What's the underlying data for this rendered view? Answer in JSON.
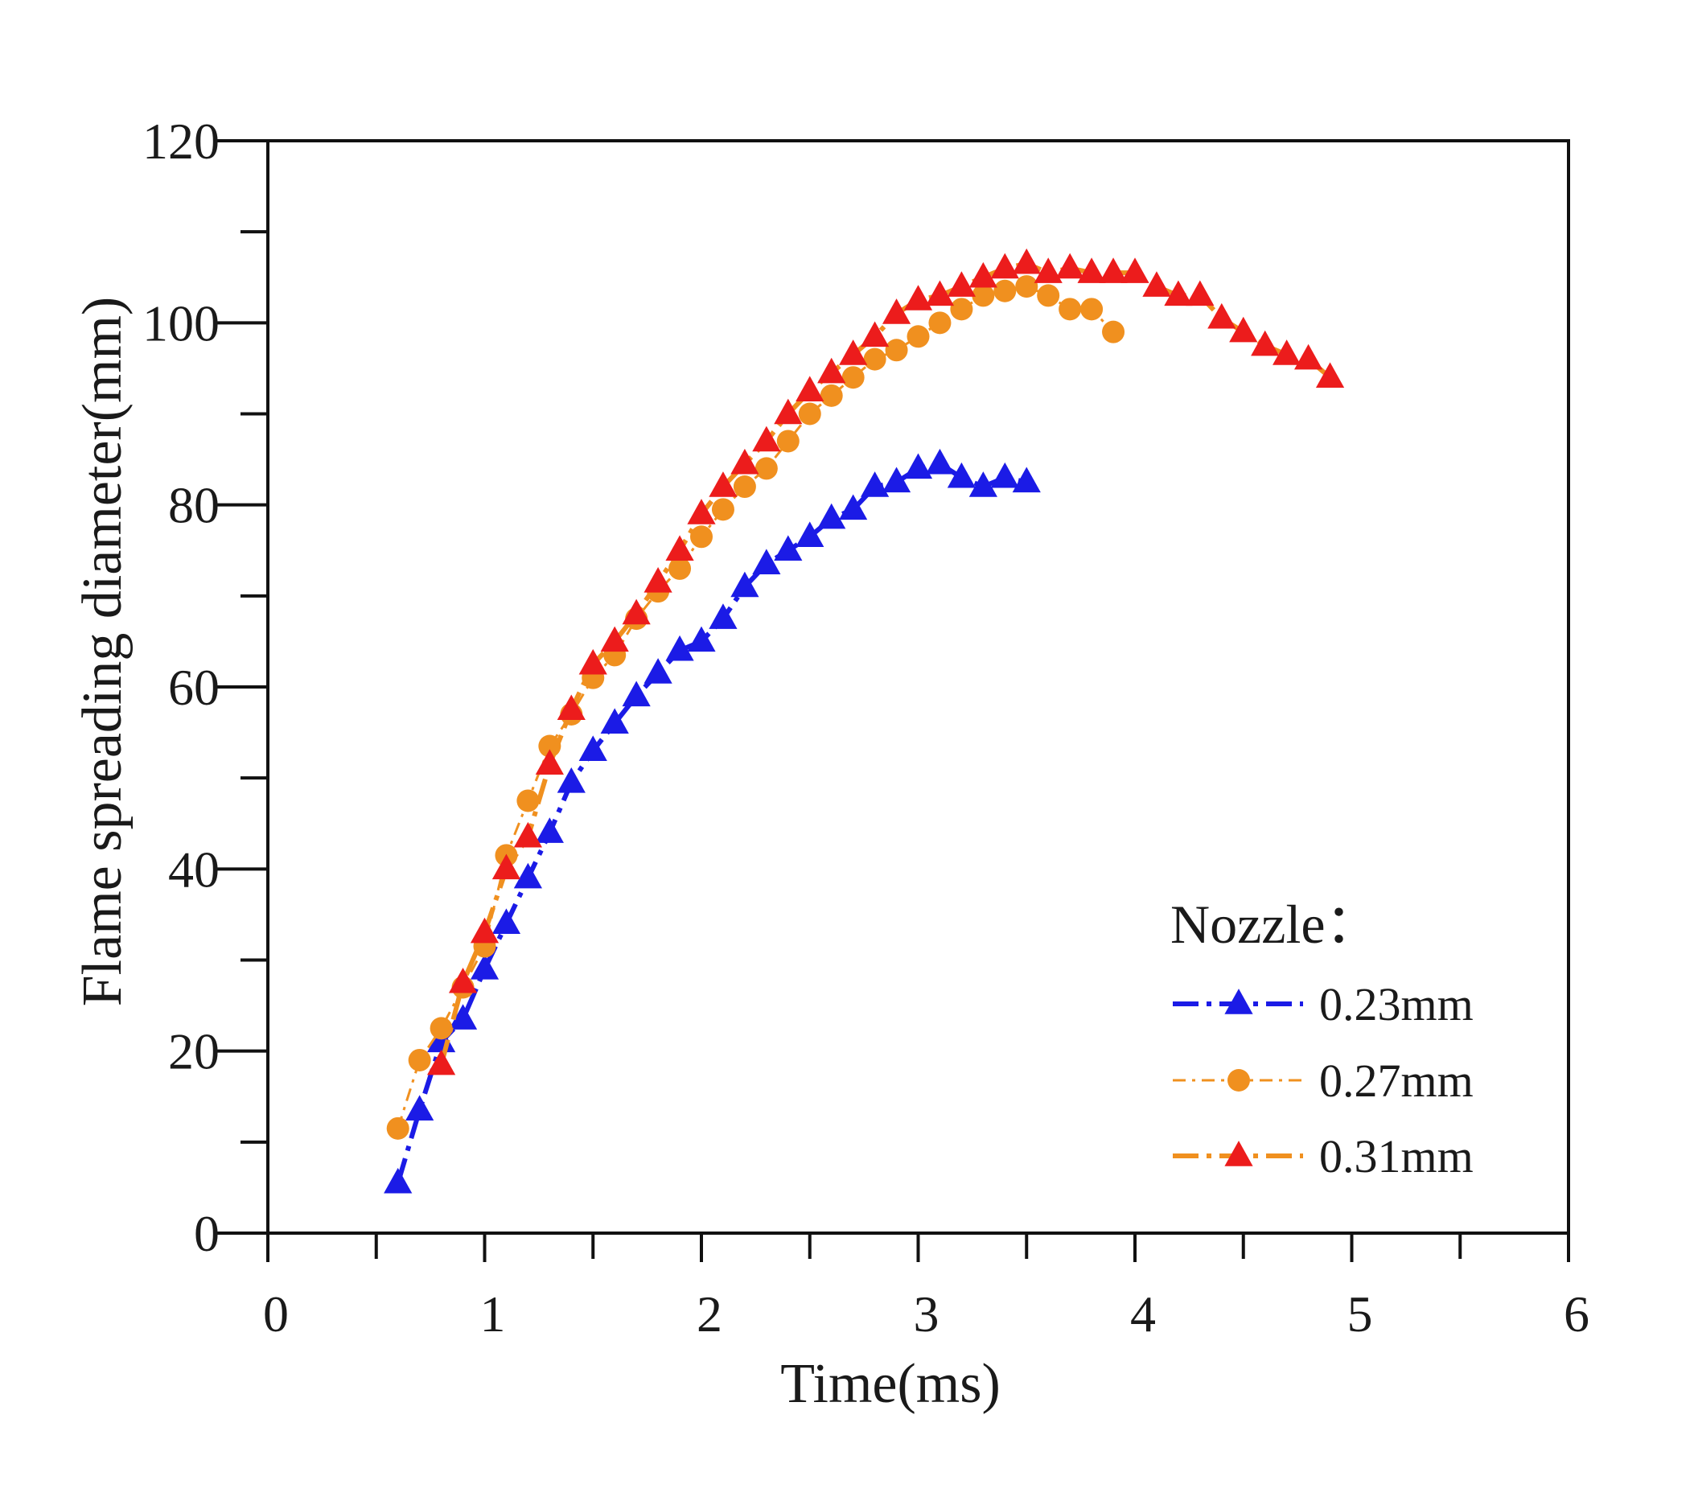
{
  "chart_data": {
    "type": "line",
    "xlabel": "Time(ms)",
    "ylabel": "Flame spreading diameter(mm)",
    "xlim": [
      0,
      6
    ],
    "ylim": [
      0,
      120
    ],
    "x_ticks": [
      "0",
      "1",
      "2",
      "3",
      "4",
      "5",
      "6"
    ],
    "y_ticks": [
      "0",
      "20",
      "40",
      "60",
      "80",
      "100",
      "120"
    ],
    "x_minor_step": 0.5,
    "y_minor_step": 10,
    "grid": false,
    "legend": {
      "title": "Nozzle：",
      "position": "bottom-right"
    },
    "series": [
      {
        "name": "0.23mm",
        "color": "#1b1be6",
        "marker": "triangle",
        "line_style": "dash-dot",
        "x": [
          0.6,
          0.7,
          0.8,
          0.9,
          1.0,
          1.1,
          1.2,
          1.3,
          1.4,
          1.5,
          1.6,
          1.7,
          1.8,
          1.9,
          2.0,
          2.1,
          2.2,
          2.3,
          2.4,
          2.5,
          2.6,
          2.7,
          2.8,
          2.9,
          3.0,
          3.1,
          3.2,
          3.3,
          3.4,
          3.5
        ],
        "y": [
          5.5,
          13.5,
          21,
          23.5,
          29,
          34,
          39,
          44,
          49.5,
          53,
          56,
          59,
          61.5,
          64,
          65,
          67.5,
          71,
          73.5,
          75,
          76.5,
          78.5,
          79.5,
          82,
          82.5,
          84,
          84.5,
          83,
          82,
          83,
          82.5
        ]
      },
      {
        "name": "0.27mm",
        "color": "#f0901f",
        "marker": "circle",
        "line_style": "dash-dot-thin",
        "x": [
          0.6,
          0.7,
          0.8,
          0.9,
          1.0,
          1.1,
          1.2,
          1.3,
          1.4,
          1.5,
          1.6,
          1.7,
          1.8,
          1.9,
          2.0,
          2.1,
          2.2,
          2.3,
          2.4,
          2.5,
          2.6,
          2.7,
          2.8,
          2.9,
          3.0,
          3.1,
          3.2,
          3.3,
          3.4,
          3.5,
          3.6,
          3.7,
          3.8,
          3.9
        ],
        "y": [
          11.5,
          19,
          22.5,
          27,
          31.5,
          41.5,
          47.5,
          53.5,
          57,
          61,
          63.5,
          67.5,
          70.5,
          73,
          76.5,
          79.5,
          82,
          84,
          87,
          90,
          92,
          94,
          96,
          97,
          98.5,
          100,
          101.5,
          103,
          103.5,
          104,
          103,
          101.5,
          101.5,
          99
        ]
      },
      {
        "name": "0.31mm",
        "color": "#ec1c1c",
        "line_color": "#f0901f",
        "marker": "triangle",
        "line_style": "dash-dot",
        "x": [
          0.8,
          0.9,
          1.0,
          1.1,
          1.2,
          1.3,
          1.4,
          1.5,
          1.6,
          1.7,
          1.8,
          1.9,
          2.0,
          2.1,
          2.2,
          2.3,
          2.4,
          2.5,
          2.6,
          2.7,
          2.8,
          2.9,
          3.0,
          3.1,
          3.2,
          3.3,
          3.4,
          3.5,
          3.6,
          3.7,
          3.8,
          3.9,
          4.0,
          4.1,
          4.2,
          4.3,
          4.4,
          4.5,
          4.6,
          4.7,
          4.8,
          4.9
        ],
        "y": [
          18.5,
          27.5,
          33,
          40,
          43.5,
          51.5,
          57.5,
          62.5,
          65,
          68,
          71.5,
          75,
          79,
          82,
          84.5,
          87,
          90,
          92.5,
          94.5,
          96.5,
          98.5,
          101,
          102.5,
          103,
          104,
          105,
          106,
          106.5,
          105.5,
          106,
          105.5,
          105.5,
          105.5,
          104,
          103,
          103,
          100.5,
          99,
          97.5,
          96.5,
          96,
          94
        ]
      }
    ]
  }
}
